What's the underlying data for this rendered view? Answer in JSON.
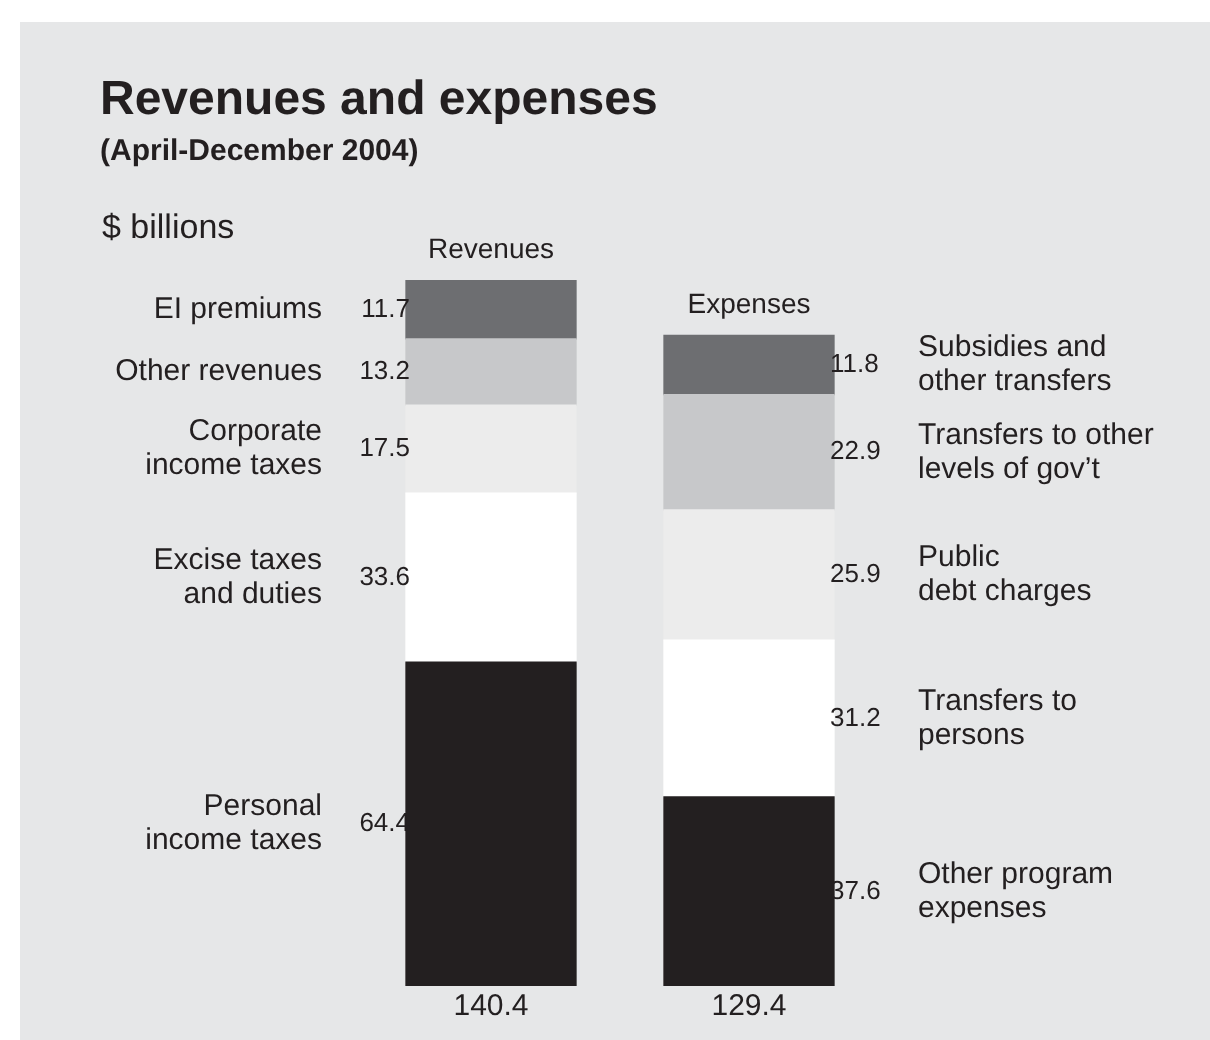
{
  "chart_data": {
    "type": "bar",
    "title": "Revenues and expenses",
    "subtitle": "(April-December 2004)",
    "ylabel": "$ billions",
    "categories": [
      "Revenues",
      "Expenses"
    ],
    "stacked": true,
    "data_labels": true,
    "totals": [
      "140.4",
      "129.4"
    ],
    "series": [
      {
        "name": "Personal\nincome taxes",
        "color": "#231f20",
        "values": [
          64.4,
          null
        ]
      },
      {
        "name": "Excise taxes\nand duties",
        "color": "#ffffff",
        "values": [
          33.6,
          null
        ]
      },
      {
        "name": "Corporate\nincome taxes",
        "color": "#ececec",
        "values": [
          17.5,
          null
        ]
      },
      {
        "name": "Other revenues",
        "color": "#c7c8ca",
        "values": [
          13.2,
          null
        ]
      },
      {
        "name": "EI premiums",
        "color": "#6d6e71",
        "values": [
          11.7,
          null
        ]
      },
      {
        "name": "Other program\nexpenses",
        "color": "#231f20",
        "values": [
          null,
          37.6
        ]
      },
      {
        "name": "Transfers to\npersons",
        "color": "#ffffff",
        "values": [
          null,
          31.2
        ]
      },
      {
        "name": "Public\ndebt charges",
        "color": "#ececec",
        "values": [
          null,
          25.9
        ]
      },
      {
        "name": "Transfers to other\nlevels of gov’t",
        "color": "#c7c8ca",
        "values": [
          null,
          22.9
        ]
      },
      {
        "name": "Subsidies and\nother transfers",
        "color": "#6d6e71",
        "values": [
          null,
          11.8
        ]
      }
    ]
  }
}
